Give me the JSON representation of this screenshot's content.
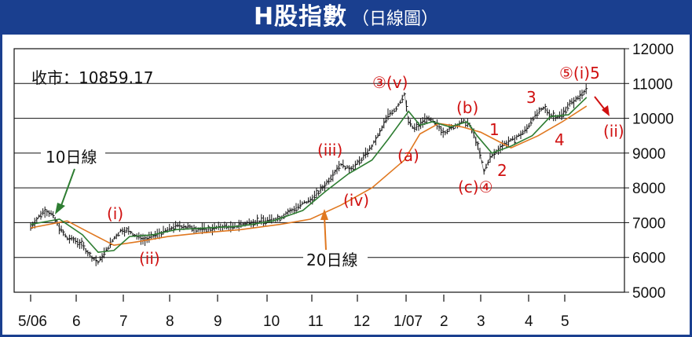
{
  "title": {
    "main": "H股指數",
    "sub": "（日線圖）"
  },
  "chart_data": {
    "type": "line",
    "close_label": "收市：10859.17",
    "xlabels": [
      "5/06",
      "6",
      "7",
      "8",
      "9",
      "10",
      "11",
      "12",
      "1/07",
      "2",
      "3",
      "4",
      "5"
    ],
    "xtick_dates": [
      "2006-05-01",
      "2006-06-01",
      "2006-07-01",
      "2006-08-01",
      "2006-09-01",
      "2006-10-01",
      "2006-11-01",
      "2006-12-01",
      "2007-01-01",
      "2007-02-01",
      "2007-03-01",
      "2007-04-01",
      "2007-05-01"
    ],
    "yticks": [
      5000,
      6000,
      7000,
      8000,
      9000,
      10000,
      11000,
      12000
    ],
    "ylim": [
      5000,
      12000
    ],
    "grid": "horizontal",
    "series": [
      {
        "name": "",
        "color": "#111111",
        "style": "daily-bars",
        "x": [
          "2006-05-01",
          "2006-05-06",
          "2006-05-10",
          "2006-05-15",
          "2006-05-20",
          "2006-05-25",
          "2006-05-30",
          "2006-06-05",
          "2006-06-10",
          "2006-06-15",
          "2006-06-20",
          "2006-06-25",
          "2006-06-30",
          "2006-07-05",
          "2006-07-10",
          "2006-07-15",
          "2006-07-20",
          "2006-07-25",
          "2006-07-30",
          "2006-08-05",
          "2006-08-10",
          "2006-08-15",
          "2006-08-20",
          "2006-08-25",
          "2006-08-30",
          "2006-09-05",
          "2006-09-10",
          "2006-09-15",
          "2006-09-20",
          "2006-09-25",
          "2006-09-30",
          "2006-10-05",
          "2006-10-10",
          "2006-10-15",
          "2006-10-20",
          "2006-10-25",
          "2006-10-30",
          "2006-11-05",
          "2006-11-10",
          "2006-11-15",
          "2006-11-20",
          "2006-11-25",
          "2006-11-30",
          "2006-12-05",
          "2006-12-10",
          "2006-12-15",
          "2006-12-20",
          "2006-12-25",
          "2006-12-30",
          "2007-01-03",
          "2007-01-07",
          "2007-01-12",
          "2007-01-17",
          "2007-01-22",
          "2007-01-27",
          "2007-02-01",
          "2007-02-06",
          "2007-02-11",
          "2007-02-16",
          "2007-02-21",
          "2007-02-26",
          "2007-03-01",
          "2007-03-03",
          "2007-03-06",
          "2007-03-10",
          "2007-03-15",
          "2007-03-20",
          "2007-03-25",
          "2007-03-30",
          "2007-04-04",
          "2007-04-09",
          "2007-04-14",
          "2007-04-19",
          "2007-04-24",
          "2007-04-29",
          "2007-05-04",
          "2007-05-09",
          "2007-05-14",
          "2007-05-18"
        ],
        "values": [
          6880,
          7150,
          7350,
          7250,
          6850,
          6550,
          6500,
          6350,
          6050,
          5850,
          6200,
          6550,
          6800,
          6750,
          6600,
          6500,
          6600,
          6700,
          6800,
          6900,
          6900,
          6850,
          6800,
          6800,
          6850,
          6900,
          6850,
          6950,
          7000,
          7050,
          7050,
          7100,
          7150,
          7300,
          7400,
          7550,
          7650,
          7850,
          8100,
          8400,
          8700,
          8550,
          8650,
          8900,
          9200,
          9600,
          10100,
          10300,
          10700,
          9900,
          9700,
          9800,
          10000,
          9900,
          9750,
          9600,
          9700,
          9800,
          9900,
          9850,
          9500,
          8900,
          8450,
          8800,
          9000,
          9250,
          9350,
          9500,
          9700,
          10000,
          10150,
          10300,
          10100,
          10050,
          10100,
          10400,
          10500,
          10700,
          10859
        ]
      },
      {
        "name": "10日線",
        "color": "#2e7d32",
        "style": "line",
        "x": [
          "2006-05-01",
          "2006-05-20",
          "2006-06-05",
          "2006-06-15",
          "2006-06-25",
          "2006-07-05",
          "2006-07-20",
          "2006-08-05",
          "2006-08-25",
          "2006-09-15",
          "2006-10-05",
          "2006-10-25",
          "2006-11-10",
          "2006-11-25",
          "2006-12-10",
          "2006-12-20",
          "2007-01-03",
          "2007-01-12",
          "2007-01-22",
          "2007-02-06",
          "2007-02-20",
          "2007-02-28",
          "2007-03-08",
          "2007-03-20",
          "2007-04-04",
          "2007-04-19",
          "2007-05-04",
          "2007-05-18"
        ],
        "values": [
          6950,
          7100,
          6650,
          6150,
          6200,
          6600,
          6650,
          6800,
          6850,
          6900,
          7050,
          7350,
          7900,
          8400,
          8800,
          9400,
          10200,
          9800,
          9900,
          9750,
          9900,
          9500,
          9000,
          9200,
          9500,
          10050,
          10100,
          10600
        ]
      },
      {
        "name": "20日線",
        "color": "#e07820",
        "style": "line",
        "x": [
          "2006-05-01",
          "2006-05-25",
          "2006-06-10",
          "2006-06-25",
          "2006-07-10",
          "2006-07-30",
          "2006-08-20",
          "2006-09-15",
          "2006-10-10",
          "2006-10-30",
          "2006-11-20",
          "2006-12-10",
          "2006-12-30",
          "2007-01-12",
          "2007-01-27",
          "2007-02-16",
          "2007-03-01",
          "2007-03-20",
          "2007-04-09",
          "2007-04-29",
          "2007-05-18"
        ],
        "values": [
          6850,
          7050,
          6700,
          6350,
          6450,
          6600,
          6700,
          6800,
          6950,
          7100,
          7500,
          8000,
          8800,
          9550,
          9850,
          9750,
          9600,
          9150,
          9500,
          9900,
          10350
        ]
      }
    ],
    "annotations": [
      {
        "text": "③(v)",
        "color": "#d01010"
      },
      {
        "text": "(b)",
        "color": "#d01010"
      },
      {
        "text": "⑤(i)5",
        "color": "#d01010"
      },
      {
        "text": "3",
        "color": "#d01010"
      },
      {
        "text": "1",
        "color": "#d01010"
      },
      {
        "text": "(ii)",
        "color": "#d01010"
      },
      {
        "text": "4",
        "color": "#d01010"
      },
      {
        "text": "(a)",
        "color": "#d01010"
      },
      {
        "text": "(iii)",
        "color": "#d01010"
      },
      {
        "text": "2",
        "color": "#d01010"
      },
      {
        "text": "(c)④",
        "color": "#d01010"
      },
      {
        "text": "(iv)",
        "color": "#d01010"
      },
      {
        "text": "(i)",
        "color": "#d01010"
      },
      {
        "text": "(ii)",
        "color": "#d01010"
      }
    ],
    "callouts": [
      {
        "text": "10日線",
        "color": "#2e7d32"
      },
      {
        "text": "20日線",
        "color": "#e07820"
      }
    ]
  }
}
